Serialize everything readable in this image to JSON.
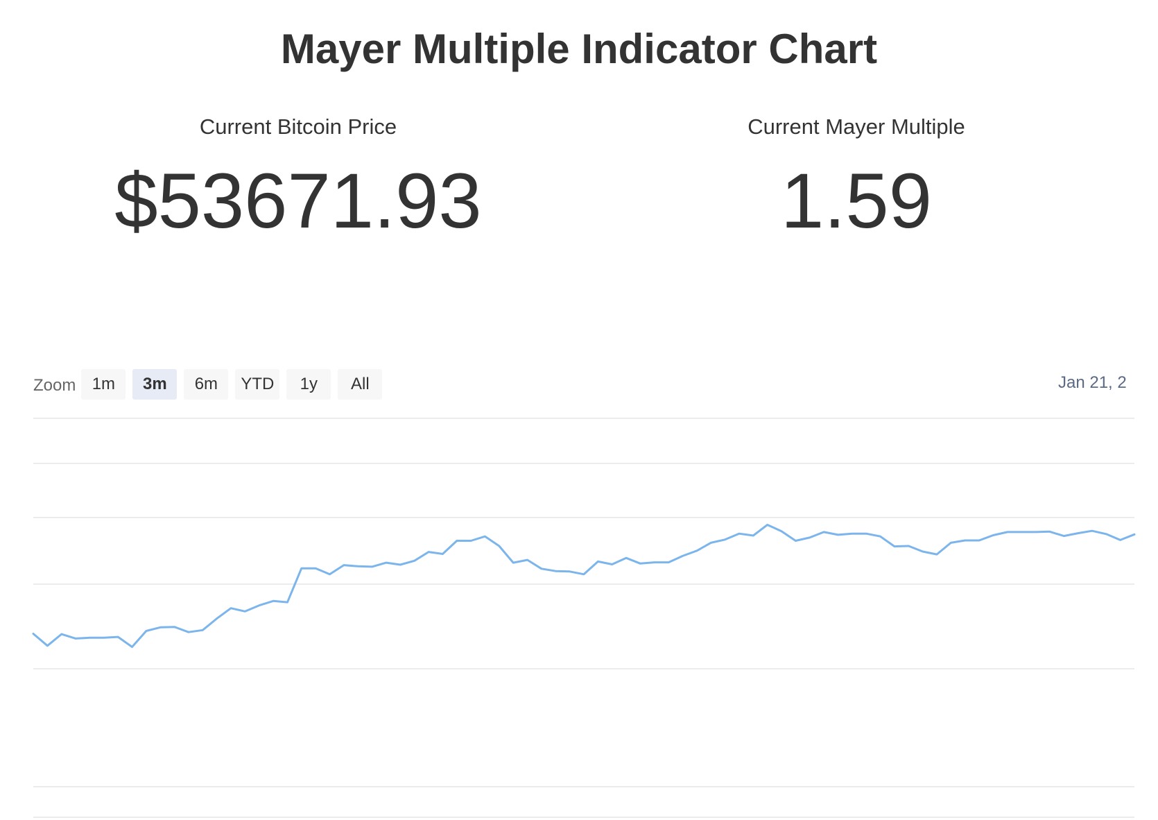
{
  "page": {
    "title": "Mayer Multiple Indicator Chart"
  },
  "stats": {
    "price_label": "Current Bitcoin Price",
    "price_value": "$53671.93",
    "multiple_label": "Current Mayer Multiple",
    "multiple_value": "1.59"
  },
  "zoom": {
    "label": "Zoom",
    "buttons": [
      "1m",
      "3m",
      "6m",
      "YTD",
      "1y",
      "All"
    ],
    "active": "3m"
  },
  "range_display": {
    "start_date": "Jan 21, 2"
  },
  "colors": {
    "line": "#7cb5ec",
    "grid": "#e6e6e6",
    "text": "#333333"
  },
  "chart_data": {
    "type": "line",
    "title": "",
    "xlabel": "",
    "ylabel": "",
    "grid": true,
    "ylim": [
      0,
      1
    ],
    "series": [
      {
        "values": [
          0.46,
          0.43,
          0.459,
          0.448,
          0.45,
          0.45,
          0.452,
          0.427,
          0.467,
          0.476,
          0.477,
          0.464,
          0.469,
          0.498,
          0.524,
          0.516,
          0.531,
          0.542,
          0.539,
          0.624,
          0.624,
          0.609,
          0.632,
          0.629,
          0.628,
          0.638,
          0.633,
          0.643,
          0.665,
          0.66,
          0.693,
          0.693,
          0.704,
          0.68,
          0.638,
          0.645,
          0.623,
          0.617,
          0.616,
          0.609,
          0.641,
          0.634,
          0.65,
          0.636,
          0.639,
          0.639,
          0.655,
          0.668,
          0.688,
          0.696,
          0.711,
          0.706,
          0.733,
          0.717,
          0.693,
          0.701,
          0.715,
          0.708,
          0.711,
          0.711,
          0.704,
          0.679,
          0.68,
          0.666,
          0.659,
          0.688,
          0.694,
          0.694,
          0.707,
          0.715,
          0.715,
          0.715,
          0.716,
          0.705,
          0.712,
          0.718,
          0.71,
          0.695,
          0.709
        ]
      }
    ]
  }
}
